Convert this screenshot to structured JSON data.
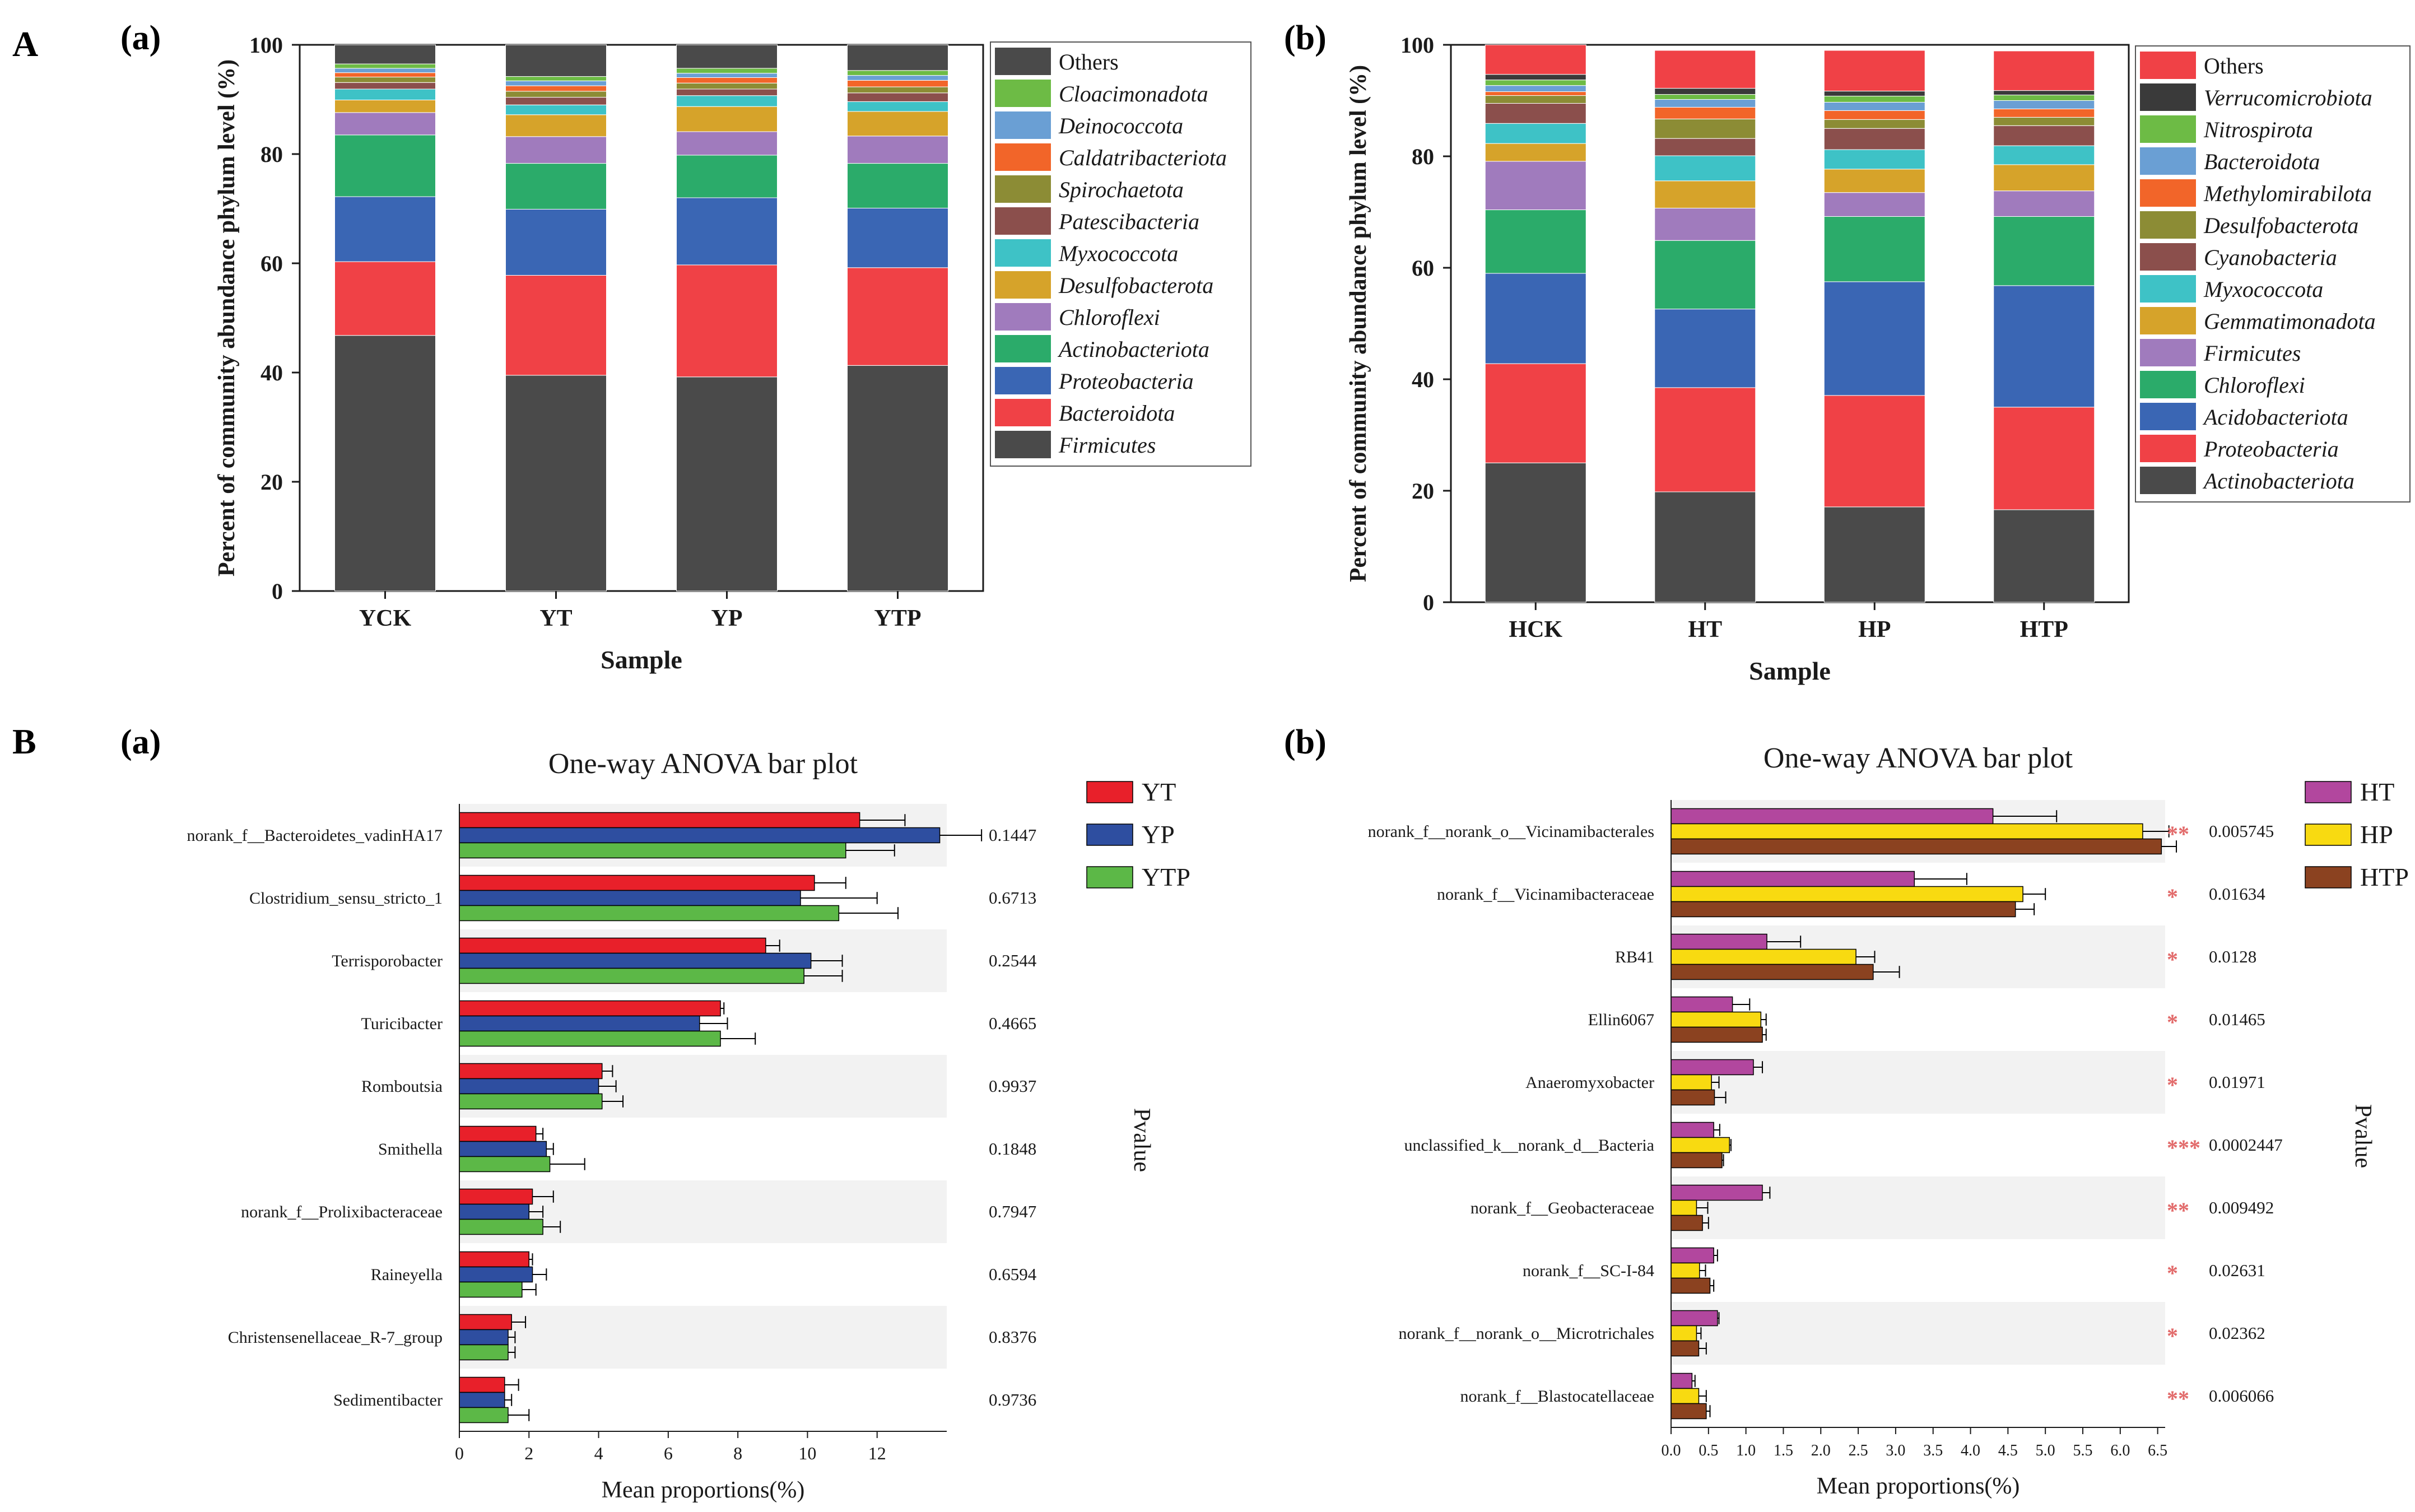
{
  "panel_labels": {
    "A": "A",
    "B": "B",
    "Aa": "(a)",
    "Ab": "(b)",
    "Ba": "(a)",
    "Bb": "(b)"
  },
  "colors": {
    "ink": "#1a1a1a",
    "grid_band": "#f2f2f2"
  },
  "chart_data": [
    {
      "id": "A-a",
      "type": "bar",
      "stacked": true,
      "title": "",
      "xlabel": "Sample",
      "ylabel": "Percent of community abundance phylum level (%)",
      "ylim": [
        0,
        100
      ],
      "yticks": [
        0,
        20,
        40,
        60,
        80,
        100
      ],
      "categories": [
        "YCK",
        "YT",
        "YP",
        "YTP"
      ],
      "series": [
        {
          "name": "Firmicutes",
          "italic": true,
          "color": "#4a4a4a",
          "values": [
            46.8,
            39.5,
            39.2,
            41.3
          ]
        },
        {
          "name": "Bacteroidota",
          "italic": true,
          "color": "#f04146",
          "values": [
            13.5,
            18.3,
            20.5,
            17.9
          ]
        },
        {
          "name": "Proteobacteria",
          "italic": true,
          "color": "#3a66b4",
          "values": [
            11.9,
            12.1,
            12.3,
            10.9
          ]
        },
        {
          "name": "Actinobacteriota",
          "italic": true,
          "color": "#2bab6a",
          "values": [
            11.3,
            8.4,
            7.8,
            8.2
          ]
        },
        {
          "name": "Chloroflexi",
          "italic": true,
          "color": "#a07bbd",
          "values": [
            4.1,
            4.9,
            4.3,
            5.0
          ]
        },
        {
          "name": "Desulfobacterota",
          "italic": true,
          "color": "#d6a32a",
          "values": [
            2.3,
            4.0,
            4.6,
            4.5
          ]
        },
        {
          "name": "Myxococcota",
          "italic": true,
          "color": "#3ec2c6",
          "values": [
            2.0,
            1.8,
            2.0,
            1.8
          ]
        },
        {
          "name": "Patescibacteria",
          "italic": true,
          "color": "#8b4f4c",
          "values": [
            1.2,
            1.4,
            1.2,
            1.6
          ]
        },
        {
          "name": "Spirochaetota",
          "italic": true,
          "color": "#8c8c35",
          "values": [
            1.0,
            1.1,
            1.1,
            1.1
          ]
        },
        {
          "name": "Caldatribacteriota",
          "italic": true,
          "color": "#f26529",
          "values": [
            0.8,
            1.0,
            1.0,
            1.2
          ]
        },
        {
          "name": "Deinococcota",
          "italic": true,
          "color": "#6a9fd4",
          "values": [
            0.8,
            0.9,
            0.8,
            0.9
          ]
        },
        {
          "name": "Cloacimonadota",
          "italic": true,
          "color": "#6dbb45",
          "values": [
            0.8,
            0.8,
            0.9,
            0.9
          ]
        },
        {
          "name": "Others",
          "italic": false,
          "color": "#4a4a4a",
          "values": [
            3.5,
            5.8,
            4.3,
            4.7
          ]
        }
      ]
    },
    {
      "id": "A-b",
      "type": "bar",
      "stacked": true,
      "title": "",
      "xlabel": "Sample",
      "ylabel": "Percent of community abundance phylum level (%)",
      "ylim": [
        0,
        100
      ],
      "yticks": [
        0,
        20,
        40,
        60,
        80,
        100
      ],
      "categories": [
        "HCK",
        "HT",
        "HP",
        "HTP"
      ],
      "series": [
        {
          "name": "Actinobacteriota",
          "italic": true,
          "color": "#4a4a4a",
          "values": [
            25.0,
            19.8,
            17.1,
            16.6
          ]
        },
        {
          "name": "Proteobacteria",
          "italic": true,
          "color": "#f04146",
          "values": [
            17.8,
            18.7,
            20.0,
            18.4
          ]
        },
        {
          "name": "Acidobacteriota",
          "italic": true,
          "color": "#3a66b4",
          "values": [
            16.2,
            14.1,
            20.4,
            21.8
          ]
        },
        {
          "name": "Chloroflexi",
          "italic": true,
          "color": "#2bab6a",
          "values": [
            11.4,
            12.3,
            11.7,
            12.4
          ]
        },
        {
          "name": "Firmicutes",
          "italic": true,
          "color": "#a07bbd",
          "values": [
            8.7,
            5.8,
            4.3,
            4.6
          ]
        },
        {
          "name": "Gemmatimonadota",
          "italic": true,
          "color": "#d6a32a",
          "values": [
            3.2,
            4.9,
            4.2,
            4.7
          ]
        },
        {
          "name": "Myxococcota",
          "italic": true,
          "color": "#3ec2c6",
          "values": [
            3.6,
            4.5,
            3.5,
            3.4
          ]
        },
        {
          "name": "Cyanobacteria",
          "italic": true,
          "color": "#8b4f4c",
          "values": [
            3.6,
            3.1,
            3.8,
            3.6
          ]
        },
        {
          "name": "Desulfobacterota",
          "italic": true,
          "color": "#8c8c35",
          "values": [
            1.4,
            3.5,
            1.6,
            1.5
          ]
        },
        {
          "name": "Methylomirabilota",
          "italic": true,
          "color": "#f26529",
          "values": [
            0.7,
            2.1,
            1.6,
            1.5
          ]
        },
        {
          "name": "Bacteroidota",
          "italic": true,
          "color": "#6a9fd4",
          "values": [
            1.1,
            1.4,
            1.5,
            1.5
          ]
        },
        {
          "name": "Nitrospirota",
          "italic": true,
          "color": "#6dbb45",
          "values": [
            1.0,
            0.9,
            1.1,
            1.0
          ]
        },
        {
          "name": "Verrucomicrobiota",
          "italic": true,
          "color": "#3a3a3a",
          "values": [
            1.0,
            1.1,
            0.9,
            0.8
          ]
        },
        {
          "name": "Others",
          "italic": false,
          "color": "#f04146",
          "values": [
            5.3,
            6.8,
            7.3,
            7.1
          ]
        }
      ]
    },
    {
      "id": "B-a",
      "type": "bar",
      "orientation": "horizontal",
      "title": "One-way ANOVA bar plot",
      "xlabel": "Mean proportions(%)",
      "ylabel": "",
      "right_label": "Pvalue",
      "xlim": [
        0,
        14
      ],
      "xticks": [
        0,
        2,
        4,
        6,
        8,
        10,
        12
      ],
      "categories": [
        "norank_f__Bacteroidetes_vadinHA17",
        "Clostridium_sensu_stricto_1",
        "Terrisporobacter",
        "Turicibacter",
        "Romboutsia",
        "Smithella",
        "norank_f__Prolixibacteraceae",
        "Raineyella",
        "Christensenellaceae_R-7_group",
        "Sedimentibacter"
      ],
      "pvalues": [
        "0.1447",
        "0.6713",
        "0.2544",
        "0.4665",
        "0.9937",
        "0.1848",
        "0.7947",
        "0.6594",
        "0.8376",
        "0.9736"
      ],
      "significance": [
        "",
        "",
        "",
        "",
        "",
        "",
        "",
        "",
        "",
        ""
      ],
      "series": [
        {
          "name": "YT",
          "color": "#e8202a",
          "values": [
            11.5,
            10.2,
            8.8,
            7.5,
            4.1,
            2.2,
            2.1,
            2.0,
            1.5,
            1.3
          ],
          "errors": [
            1.3,
            0.9,
            0.4,
            0.1,
            0.3,
            0.2,
            0.6,
            0.1,
            0.4,
            0.4
          ]
        },
        {
          "name": "YP",
          "color": "#2e4ea0",
          "values": [
            13.8,
            9.8,
            10.1,
            6.9,
            4.0,
            2.5,
            2.0,
            2.1,
            1.4,
            1.3
          ],
          "errors": [
            1.2,
            2.2,
            0.9,
            0.8,
            0.5,
            0.2,
            0.4,
            0.4,
            0.2,
            0.2
          ]
        },
        {
          "name": "YTP",
          "color": "#5cb847",
          "values": [
            11.1,
            10.9,
            9.9,
            7.5,
            4.1,
            2.6,
            2.4,
            1.8,
            1.4,
            1.4
          ],
          "errors": [
            1.4,
            1.7,
            1.1,
            1.0,
            0.6,
            1.0,
            0.5,
            0.4,
            0.2,
            0.6
          ]
        }
      ]
    },
    {
      "id": "B-b",
      "type": "bar",
      "orientation": "horizontal",
      "title": "One-way ANOVA bar plot",
      "xlabel": "Mean proportions(%)",
      "ylabel": "",
      "right_label": "Pvalue",
      "xlim": [
        0,
        6.6
      ],
      "xticks": [
        0.0,
        0.5,
        1.0,
        1.5,
        2.0,
        2.5,
        3.0,
        3.5,
        4.0,
        4.5,
        5.0,
        5.5,
        6.0,
        6.5
      ],
      "xtick_labels": [
        "0.0",
        "0.5",
        "1.0",
        "1.5",
        "2.0",
        "2.5",
        "3.0",
        "3.5",
        "4.0",
        "4.5",
        "5.0",
        "5.5",
        "6.0",
        "6.5"
      ],
      "categories": [
        "norank_f__norank_o__Vicinamibacterales",
        "norank_f__Vicinamibacteraceae",
        "RB41",
        "Ellin6067",
        "Anaeromyxobacter",
        "unclassified_k__norank_d__Bacteria",
        "norank_f__Geobacteraceae",
        "norank_f__SC-I-84",
        "norank_f__norank_o__Microtrichales",
        "norank_f__Blastocatellaceae"
      ],
      "pvalues": [
        "0.005745",
        "0.01634",
        "0.0128",
        "0.01465",
        "0.01971",
        "0.0002447",
        "0.009492",
        "0.02631",
        "0.02362",
        "0.006066"
      ],
      "significance": [
        "**",
        "*",
        "*",
        "*",
        "*",
        "***",
        "**",
        "*",
        "*",
        "**"
      ],
      "series": [
        {
          "name": "HT",
          "color": "#b2479e",
          "values": [
            4.3,
            3.25,
            1.28,
            0.82,
            1.1,
            0.57,
            1.22,
            0.57,
            0.62,
            0.28
          ],
          "errors": [
            0.85,
            0.7,
            0.45,
            0.23,
            0.12,
            0.08,
            0.1,
            0.05,
            0.02,
            0.04
          ]
        },
        {
          "name": "HP",
          "color": "#f8da11",
          "values": [
            6.3,
            4.7,
            2.47,
            1.2,
            0.54,
            0.78,
            0.34,
            0.38,
            0.34,
            0.37
          ],
          "errors": [
            0.35,
            0.3,
            0.25,
            0.07,
            0.1,
            0.02,
            0.15,
            0.08,
            0.06,
            0.1
          ]
        },
        {
          "name": "HTP",
          "color": "#8b4220",
          "values": [
            6.55,
            4.6,
            2.7,
            1.22,
            0.58,
            0.68,
            0.42,
            0.52,
            0.37,
            0.47
          ],
          "errors": [
            0.2,
            0.25,
            0.35,
            0.05,
            0.15,
            0.02,
            0.08,
            0.05,
            0.1,
            0.05
          ]
        }
      ]
    }
  ]
}
